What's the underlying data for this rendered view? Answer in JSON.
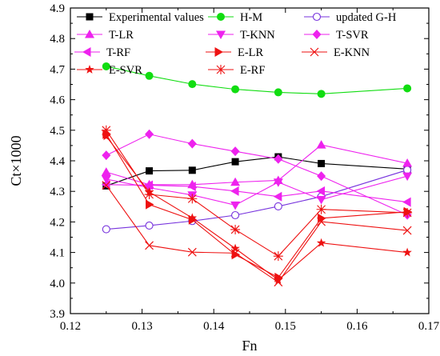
{
  "chart_data": {
    "type": "line",
    "xlabel": "Fn",
    "ylabel": "Ct×1000",
    "xlim": [
      0.12,
      0.17
    ],
    "ylim": [
      3.9,
      4.9
    ],
    "xticks": [
      "0.12",
      "0.13",
      "0.14",
      "0.15",
      "0.16",
      "0.17"
    ],
    "yticks": [
      "3.9",
      "4.0",
      "4.1",
      "4.2",
      "4.3",
      "4.4",
      "4.5",
      "4.6",
      "4.7",
      "4.8",
      "4.9"
    ],
    "grid": false,
    "legend_position": "top",
    "x": [
      0.125,
      0.131,
      0.137,
      0.143,
      0.149,
      0.155,
      0.167
    ],
    "series": [
      {
        "name": "Experimental values",
        "color": "#000000",
        "marker": "square",
        "values": [
          4.318,
          4.367,
          4.369,
          4.397,
          4.413,
          4.391,
          4.373
        ]
      },
      {
        "name": "H-M",
        "color": "#11dd11",
        "marker": "circle",
        "values": [
          4.709,
          4.678,
          4.651,
          4.634,
          4.624,
          4.619,
          4.637
        ]
      },
      {
        "name": "updated G-H",
        "color": "#7733dd",
        "marker": "open-circle",
        "values": [
          4.176,
          4.188,
          4.203,
          4.222,
          4.251,
          4.283,
          4.37
        ]
      },
      {
        "name": "T-LR",
        "color": "#ee22ee",
        "marker": "triangle-up",
        "values": [
          4.363,
          4.322,
          4.322,
          4.33,
          4.336,
          4.452,
          4.392
        ]
      },
      {
        "name": "T-KNN",
        "color": "#ee22ee",
        "marker": "triangle-down",
        "values": [
          4.34,
          4.312,
          4.288,
          4.255,
          4.33,
          4.273,
          4.35
        ]
      },
      {
        "name": "T-SVR",
        "color": "#ee22ee",
        "marker": "diamond",
        "values": [
          4.418,
          4.487,
          4.456,
          4.431,
          4.406,
          4.35,
          4.223
        ]
      },
      {
        "name": "T-RF",
        "color": "#ee22ee",
        "marker": "triangle-left",
        "values": [
          4.322,
          4.32,
          4.316,
          4.301,
          4.283,
          4.301,
          4.265
        ]
      },
      {
        "name": "E-LR",
        "color": "#ee1111",
        "marker": "triangle-right",
        "values": [
          4.487,
          4.257,
          4.207,
          4.093,
          4.018,
          4.212,
          4.233
        ]
      },
      {
        "name": "E-KNN",
        "color": "#ee1111",
        "marker": "x",
        "values": [
          4.32,
          4.123,
          4.101,
          4.098,
          4.003,
          4.201,
          4.172
        ]
      },
      {
        "name": "E-SVR",
        "color": "#ee1111",
        "marker": "star",
        "values": [
          4.48,
          4.298,
          4.213,
          4.113,
          4.01,
          4.131,
          4.1
        ]
      },
      {
        "name": "E-RF",
        "color": "#ee1111",
        "marker": "asterisk",
        "values": [
          4.5,
          4.29,
          4.276,
          4.175,
          4.088,
          4.241,
          4.23
        ]
      }
    ]
  }
}
